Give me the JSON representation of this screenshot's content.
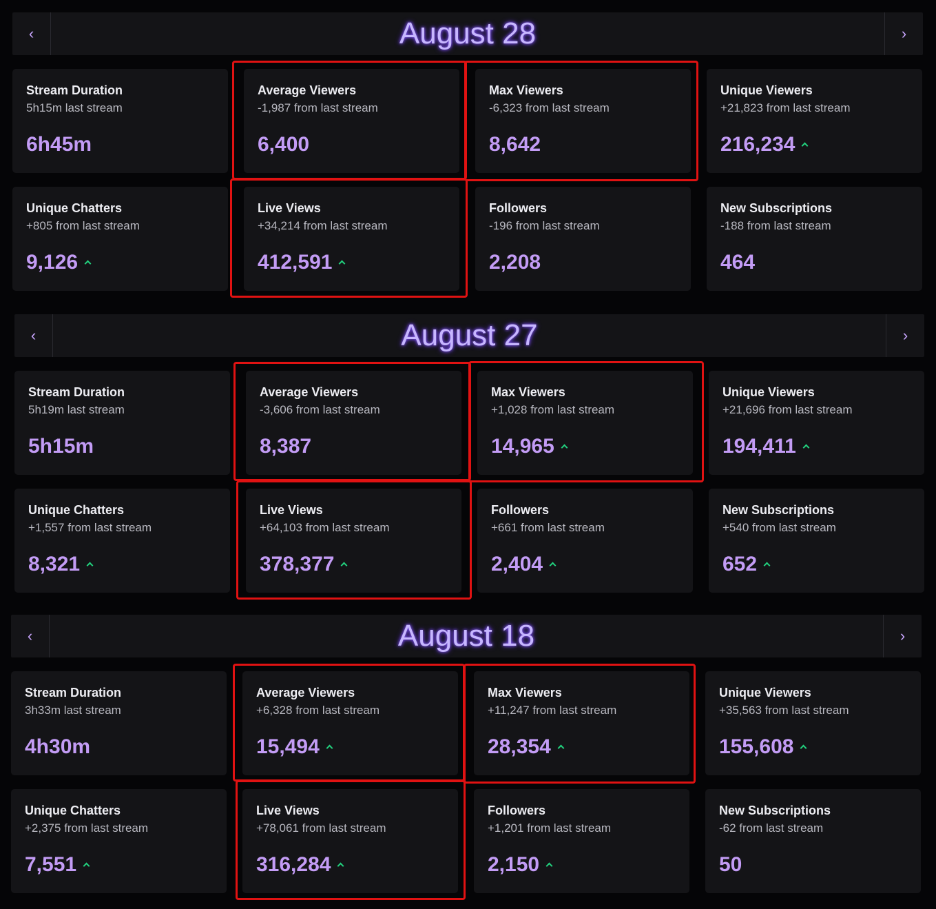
{
  "sections": [
    {
      "date": "August 28",
      "prev_icon": "chevron-left-icon",
      "next_icon": "chevron-right-icon",
      "cards": [
        {
          "title": "Stream Duration",
          "sub": "5h15m last stream",
          "value": "6h45m",
          "up": false
        },
        {
          "title": "Average Viewers",
          "sub": "-1,987 from last stream",
          "value": "6,400",
          "up": false
        },
        {
          "title": "Max Viewers",
          "sub": "-6,323 from last stream",
          "value": "8,642",
          "up": false
        },
        {
          "title": "Unique Viewers",
          "sub": "+21,823 from last stream",
          "value": "216,234",
          "up": true
        },
        {
          "title": "Unique Chatters",
          "sub": "+805 from last stream",
          "value": "9,126",
          "up": true
        },
        {
          "title": "Live Views",
          "sub": "+34,214 from last stream",
          "value": "412,591",
          "up": true
        },
        {
          "title": "Followers",
          "sub": "-196 from last stream",
          "value": "2,208",
          "up": false
        },
        {
          "title": "New Subscriptions",
          "sub": "-188 from last stream",
          "value": "464",
          "up": false
        }
      ]
    },
    {
      "date": "August 27",
      "prev_icon": "chevron-left-icon",
      "next_icon": "chevron-right-icon",
      "cards": [
        {
          "title": "Stream Duration",
          "sub": "5h19m last stream",
          "value": "5h15m",
          "up": false
        },
        {
          "title": "Average Viewers",
          "sub": "-3,606 from last stream",
          "value": "8,387",
          "up": false
        },
        {
          "title": "Max Viewers",
          "sub": "+1,028 from last stream",
          "value": "14,965",
          "up": true
        },
        {
          "title": "Unique Viewers",
          "sub": "+21,696 from last stream",
          "value": "194,411",
          "up": true
        },
        {
          "title": "Unique Chatters",
          "sub": "+1,557 from last stream",
          "value": "8,321",
          "up": true
        },
        {
          "title": "Live Views",
          "sub": "+64,103 from last stream",
          "value": "378,377",
          "up": true
        },
        {
          "title": "Followers",
          "sub": "+661 from last stream",
          "value": "2,404",
          "up": true
        },
        {
          "title": "New Subscriptions",
          "sub": "+540 from last stream",
          "value": "652",
          "up": true
        }
      ]
    },
    {
      "date": "August 18",
      "prev_icon": "chevron-left-icon",
      "next_icon": "chevron-right-icon",
      "cards": [
        {
          "title": "Stream Duration",
          "sub": "3h33m last stream",
          "value": "4h30m",
          "up": false
        },
        {
          "title": "Average Viewers",
          "sub": "+6,328 from last stream",
          "value": "15,494",
          "up": true
        },
        {
          "title": "Max Viewers",
          "sub": "+11,247 from last stream",
          "value": "28,354",
          "up": true
        },
        {
          "title": "Unique Viewers",
          "sub": "+35,563 from last stream",
          "value": "155,608",
          "up": true
        },
        {
          "title": "Unique Chatters",
          "sub": "+2,375 from last stream",
          "value": "7,551",
          "up": true
        },
        {
          "title": "Live Views",
          "sub": "+78,061 from last stream",
          "value": "316,284",
          "up": true
        },
        {
          "title": "Followers",
          "sub": "+1,201 from last stream",
          "value": "2,150",
          "up": true
        },
        {
          "title": "New Subscriptions",
          "sub": "-62 from last stream",
          "value": "50",
          "up": false
        }
      ]
    }
  ],
  "colors": {
    "value": "#c39cf5",
    "up_arrow": "#22d17e",
    "highlight": "#e01212",
    "title_glow": "#8a5cff"
  }
}
